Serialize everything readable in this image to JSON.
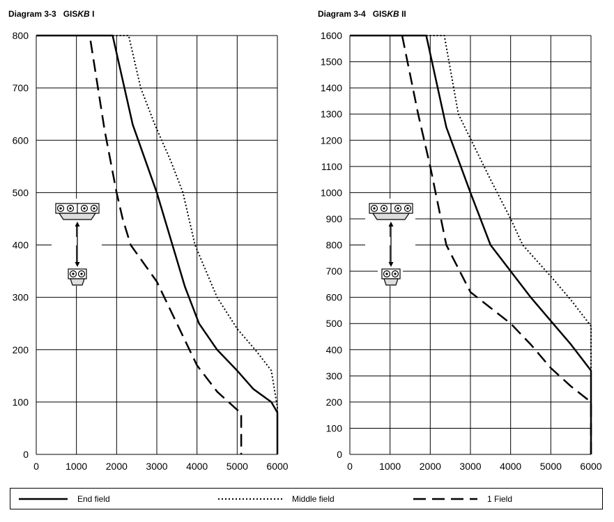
{
  "colors": {
    "line": "#000000",
    "grid": "#000000",
    "background": "#ffffff"
  },
  "legend": {
    "items": [
      {
        "label": "End field",
        "style": "solid"
      },
      {
        "label": "Middle field",
        "style": "dotted"
      },
      {
        "label": "1 Field",
        "style": "dashed"
      }
    ]
  },
  "icons": {
    "trolley_double": "double-trolley-icon",
    "trolley_single": "single-trolley-icon",
    "arrow": "double-arrow-icon"
  },
  "chart_data": [
    {
      "type": "line",
      "title_prefix": "Diagram 3-3",
      "title_system": "GIS",
      "title_em": "KB",
      "title_suffix": " I",
      "xlabel": "",
      "ylabel": "",
      "xlim": [
        0,
        6000
      ],
      "ylim": [
        0,
        800
      ],
      "xticks": [
        0,
        1000,
        2000,
        3000,
        4000,
        5000,
        6000
      ],
      "yticks": [
        0,
        100,
        200,
        300,
        400,
        500,
        600,
        700,
        800
      ],
      "grid": true,
      "series": [
        {
          "name": "End field",
          "style": "solid",
          "points": [
            [
              0,
              800
            ],
            [
              1900,
              800
            ],
            [
              2400,
              630
            ],
            [
              3000,
              500
            ],
            [
              3700,
              320
            ],
            [
              4050,
              250
            ],
            [
              4500,
              200
            ],
            [
              5000,
              160
            ],
            [
              5400,
              125
            ],
            [
              5850,
              100
            ],
            [
              6000,
              80
            ],
            [
              6000,
              0
            ]
          ]
        },
        {
          "name": "Middle field",
          "style": "dotted",
          "points": [
            [
              1900,
              800
            ],
            [
              2300,
              800
            ],
            [
              2600,
              700
            ],
            [
              2950,
              630
            ],
            [
              3350,
              560
            ],
            [
              3650,
              500
            ],
            [
              3950,
              400
            ],
            [
              4500,
              300
            ],
            [
              5000,
              240
            ],
            [
              5500,
              195
            ],
            [
              5850,
              160
            ],
            [
              6000,
              90
            ],
            [
              6000,
              0
            ]
          ]
        },
        {
          "name": "1 Field",
          "style": "dashed",
          "points": [
            [
              1350,
              790
            ],
            [
              1700,
              620
            ],
            [
              2000,
              500
            ],
            [
              2150,
              450
            ],
            [
              2350,
              400
            ],
            [
              3000,
              330
            ],
            [
              3500,
              250
            ],
            [
              4000,
              170
            ],
            [
              4500,
              120
            ],
            [
              5000,
              85
            ],
            [
              5100,
              80
            ],
            [
              5100,
              0
            ]
          ]
        }
      ]
    },
    {
      "type": "line",
      "title_prefix": "Diagram 3-4",
      "title_system": "GIS",
      "title_em": "KB",
      "title_suffix": " II",
      "xlabel": "",
      "ylabel": "",
      "xlim": [
        0,
        6000
      ],
      "ylim": [
        0,
        1600
      ],
      "xticks": [
        0,
        1000,
        2000,
        3000,
        4000,
        5000,
        6000
      ],
      "yticks": [
        0,
        100,
        200,
        300,
        400,
        500,
        600,
        700,
        800,
        900,
        1000,
        1100,
        1200,
        1300,
        1400,
        1500,
        1600
      ],
      "grid": true,
      "series": [
        {
          "name": "End field",
          "style": "solid",
          "points": [
            [
              0,
              1600
            ],
            [
              1900,
              1600
            ],
            [
              2400,
              1250
            ],
            [
              3000,
              1000
            ],
            [
              3500,
              800
            ],
            [
              4000,
              700
            ],
            [
              4500,
              600
            ],
            [
              5000,
              510
            ],
            [
              5500,
              420
            ],
            [
              6000,
              320
            ],
            [
              6000,
              0
            ]
          ]
        },
        {
          "name": "Middle field",
          "style": "dotted",
          "points": [
            [
              1900,
              1600
            ],
            [
              2350,
              1600
            ],
            [
              2700,
              1300
            ],
            [
              3500,
              1050
            ],
            [
              4000,
              900
            ],
            [
              4300,
              800
            ],
            [
              5000,
              680
            ],
            [
              5500,
              590
            ],
            [
              6000,
              490
            ],
            [
              6000,
              0
            ]
          ]
        },
        {
          "name": "1 Field",
          "style": "dashed",
          "points": [
            [
              1300,
              1600
            ],
            [
              1700,
              1300
            ],
            [
              2000,
              1100
            ],
            [
              2400,
              800
            ],
            [
              3000,
              620
            ],
            [
              3500,
              560
            ],
            [
              4000,
              500
            ],
            [
              4500,
              420
            ],
            [
              5000,
              330
            ],
            [
              5500,
              260
            ],
            [
              6000,
              200
            ],
            [
              6000,
              0
            ]
          ]
        }
      ]
    }
  ]
}
